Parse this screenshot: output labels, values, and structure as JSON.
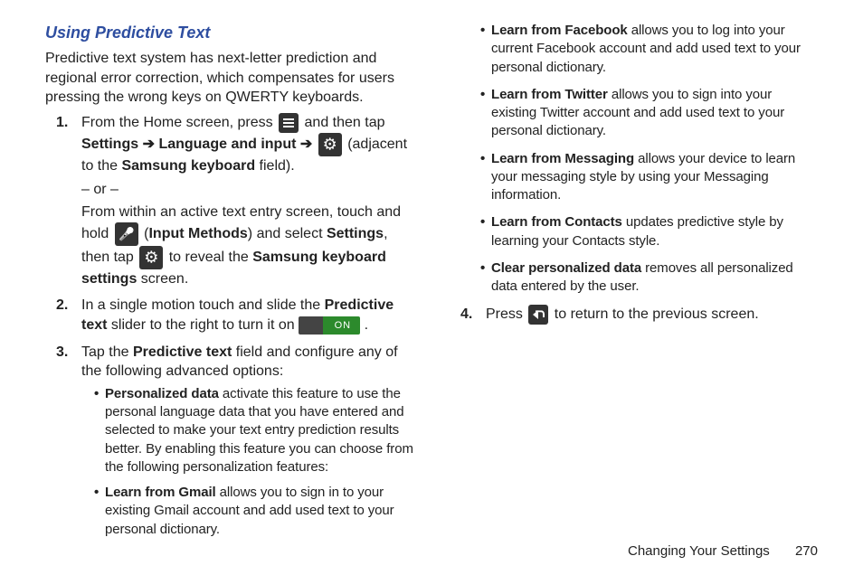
{
  "colors": {
    "heading": "#2e4ea0",
    "text": "#222222",
    "icon_bg": "#333333",
    "on_slider_off": "#444444",
    "on_slider_on": "#2c8a2c",
    "background": "#ffffff"
  },
  "heading": "Using Predictive Text",
  "intro": "Predictive text system has next-letter prediction and regional error correction, which compensates for users pressing the wrong keys on QWERTY keyboards.",
  "arrow_glyph": "➔",
  "on_label": "ON",
  "step1": {
    "t1": "From the Home screen, press ",
    "t2": " and then tap ",
    "settings": "Settings",
    "lang_input": "Language and input",
    "adjacent": " (adjacent to the ",
    "sk_field": "Samsung keyboard",
    "field_end": " field).",
    "or": "– or –",
    "alt_1": "From within an active text entry screen, touch and hold ",
    "input_methods": "Input Methods",
    "alt_2": ") and select ",
    "settings2": "Settings",
    "alt_3": ", then tap ",
    "alt_4": " to reveal the ",
    "sks": "Samsung keyboard settings",
    "alt_5": " screen."
  },
  "step2": {
    "a": "In a single motion touch and slide the ",
    "pt": "Predictive text",
    "b": " slider to the right to turn it on "
  },
  "step3": {
    "a": "Tap the ",
    "pt": "Predictive text",
    "b": " field and configure any of the following advanced options:"
  },
  "opts_left": [
    {
      "b": "Personalized data",
      "t": " activate this feature to use the personal language data that you have entered and selected to make your text entry prediction results better. By enabling this feature you can choose from the following personalization features:"
    },
    {
      "b": "Learn from Gmail",
      "t": " allows you to sign in to your existing Gmail account and add used text to your personal dictionary."
    }
  ],
  "opts_right": [
    {
      "b": "Learn from Facebook",
      "t": " allows you to log into your current Facebook account and add used text to your personal dictionary."
    },
    {
      "b": "Learn from Twitter",
      "t": " allows you to sign into your existing Twitter account and add used text to your personal dictionary."
    },
    {
      "b": "Learn from Messaging",
      "t": " allows your device to learn your messaging style by using your Messaging information."
    },
    {
      "b": "Learn from Contacts",
      "t": " updates predictive style by learning your Contacts style."
    },
    {
      "b": "Clear personalized data",
      "t": " removes all personalized data entered by the user."
    }
  ],
  "step4": {
    "a": "Press ",
    "b": " to return to the previous screen."
  },
  "footer": {
    "chapter": "Changing Your Settings",
    "page": "270"
  }
}
